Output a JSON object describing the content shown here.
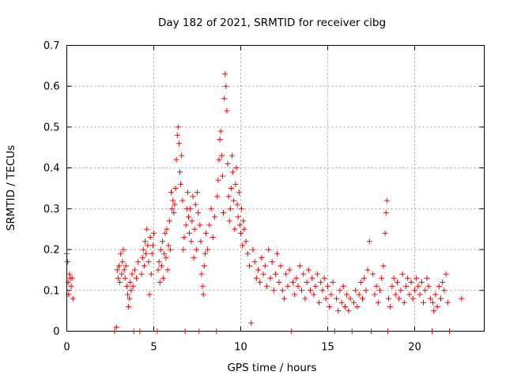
{
  "chart_data": {
    "type": "scatter",
    "title": "Day 182 of 2021, SRMTID for receiver cibg",
    "xlabel": "GPS time / hours",
    "ylabel": "SRMTID / TECUs",
    "xlim": [
      0,
      24
    ],
    "ylim": [
      0,
      0.7
    ],
    "x_ticks": [
      0,
      5,
      10,
      15,
      20
    ],
    "y_ticks": [
      0,
      0.1,
      0.2,
      0.3,
      0.4,
      0.5,
      0.6,
      0.7
    ],
    "x_tick_labels": [
      "0",
      "5",
      "10",
      "15",
      "20"
    ],
    "y_tick_labels": [
      "0",
      "0.1",
      "0.2",
      "0.3",
      "0.4",
      "0.5",
      "0.6",
      "0.7"
    ],
    "grid": true,
    "marker": "+",
    "series": [
      {
        "name": "SRMTID",
        "color": "#ff0000",
        "points": [
          [
            0.0,
            0.19
          ],
          [
            0.05,
            0.17
          ],
          [
            0.08,
            0.12
          ],
          [
            0.1,
            0.09
          ],
          [
            0.15,
            0.14
          ],
          [
            0.2,
            0.13
          ],
          [
            0.25,
            0.11
          ],
          [
            0.3,
            0.13
          ],
          [
            0.35,
            0.08
          ],
          [
            2.75,
            0.0
          ],
          [
            2.85,
            0.01
          ],
          [
            2.9,
            0.15
          ],
          [
            2.95,
            0.13
          ],
          [
            3.0,
            0.16
          ],
          [
            3.05,
            0.12
          ],
          [
            3.1,
            0.19
          ],
          [
            3.15,
            0.14
          ],
          [
            3.2,
            0.17
          ],
          [
            3.25,
            0.2
          ],
          [
            3.3,
            0.15
          ],
          [
            3.35,
            0.13
          ],
          [
            3.4,
            0.16
          ],
          [
            3.45,
            0.11
          ],
          [
            3.5,
            0.09
          ],
          [
            3.55,
            0.06
          ],
          [
            3.6,
            0.08
          ],
          [
            3.65,
            0.12
          ],
          [
            3.7,
            0.1
          ],
          [
            3.75,
            0.14
          ],
          [
            3.8,
            0.11
          ],
          [
            3.85,
            0.0
          ],
          [
            3.9,
            0.15
          ],
          [
            4.0,
            0.13
          ],
          [
            4.1,
            0.17
          ],
          [
            4.2,
            0.0
          ],
          [
            4.3,
            0.14
          ],
          [
            4.35,
            0.18
          ],
          [
            4.4,
            0.2
          ],
          [
            4.45,
            0.16
          ],
          [
            4.5,
            0.22
          ],
          [
            4.55,
            0.19
          ],
          [
            4.6,
            0.25
          ],
          [
            4.65,
            0.21
          ],
          [
            4.7,
            0.17
          ],
          [
            4.75,
            0.09
          ],
          [
            4.8,
            0.23
          ],
          [
            4.85,
            0.14
          ],
          [
            4.9,
            0.19
          ],
          [
            4.95,
            0.21
          ],
          [
            5.0,
            0.24
          ],
          [
            5.2,
            0.0
          ],
          [
            5.25,
            0.15
          ],
          [
            5.3,
            0.17
          ],
          [
            5.35,
            0.12
          ],
          [
            5.4,
            0.2
          ],
          [
            5.45,
            0.16
          ],
          [
            5.5,
            0.22
          ],
          [
            5.55,
            0.13
          ],
          [
            5.6,
            0.19
          ],
          [
            5.65,
            0.24
          ],
          [
            5.7,
            0.18
          ],
          [
            5.75,
            0.25
          ],
          [
            5.8,
            0.15
          ],
          [
            5.85,
            0.21
          ],
          [
            5.9,
            0.27
          ],
          [
            5.95,
            0.2
          ],
          [
            6.0,
            0.34
          ],
          [
            6.05,
            0.3
          ],
          [
            6.1,
            0.32
          ],
          [
            6.15,
            0.29
          ],
          [
            6.2,
            0.31
          ],
          [
            6.25,
            0.35
          ],
          [
            6.3,
            0.42
          ],
          [
            6.35,
            0.48
          ],
          [
            6.4,
            0.5
          ],
          [
            6.45,
            0.46
          ],
          [
            6.5,
            0.39
          ],
          [
            6.55,
            0.36
          ],
          [
            6.6,
            0.43
          ],
          [
            6.65,
            0.32
          ],
          [
            6.7,
            0.2
          ],
          [
            6.75,
            0.23
          ],
          [
            6.8,
            0.0
          ],
          [
            6.85,
            0.26
          ],
          [
            6.9,
            0.3
          ],
          [
            6.95,
            0.34
          ],
          [
            7.0,
            0.28
          ],
          [
            7.05,
            0.24
          ],
          [
            7.1,
            0.3
          ],
          [
            7.15,
            0.22
          ],
          [
            7.2,
            0.27
          ],
          [
            7.25,
            0.33
          ],
          [
            7.3,
            0.18
          ],
          [
            7.35,
            0.25
          ],
          [
            7.4,
            0.31
          ],
          [
            7.45,
            0.2
          ],
          [
            7.5,
            0.34
          ],
          [
            7.55,
            0.29
          ],
          [
            7.6,
            0.0
          ],
          [
            7.65,
            0.26
          ],
          [
            7.7,
            0.22
          ],
          [
            7.75,
            0.14
          ],
          [
            7.8,
            0.11
          ],
          [
            7.85,
            0.09
          ],
          [
            7.9,
            0.16
          ],
          [
            7.95,
            0.19
          ],
          [
            8.0,
            0.24
          ],
          [
            8.1,
            0.2
          ],
          [
            8.2,
            0.26
          ],
          [
            8.3,
            0.3
          ],
          [
            8.4,
            0.23
          ],
          [
            8.5,
            0.28
          ],
          [
            8.6,
            0.0
          ],
          [
            8.65,
            0.33
          ],
          [
            8.7,
            0.37
          ],
          [
            8.75,
            0.42
          ],
          [
            8.8,
            0.47
          ],
          [
            8.85,
            0.49
          ],
          [
            8.9,
            0.43
          ],
          [
            8.95,
            0.38
          ],
          [
            9.0,
            0.29
          ],
          [
            9.05,
            0.57
          ],
          [
            9.1,
            0.63
          ],
          [
            9.15,
            0.6
          ],
          [
            9.2,
            0.54
          ],
          [
            9.25,
            0.41
          ],
          [
            9.3,
            0.33
          ],
          [
            9.35,
            0.27
          ],
          [
            9.4,
            0.3
          ],
          [
            9.45,
            0.35
          ],
          [
            9.5,
            0.43
          ],
          [
            9.55,
            0.39
          ],
          [
            9.6,
            0.32
          ],
          [
            9.65,
            0.25
          ],
          [
            9.7,
            0.36
          ],
          [
            9.75,
            0.4
          ],
          [
            9.8,
            0.31
          ],
          [
            9.85,
            0.28
          ],
          [
            9.9,
            0.34
          ],
          [
            9.95,
            0.26
          ],
          [
            10.0,
            0.24
          ],
          [
            10.05,
            0.3
          ],
          [
            10.1,
            0.21
          ],
          [
            10.15,
            0.27
          ],
          [
            10.2,
            0.25
          ],
          [
            10.3,
            0.22
          ],
          [
            10.4,
            0.19
          ],
          [
            10.5,
            0.16
          ],
          [
            10.6,
            0.02
          ],
          [
            10.7,
            0.2
          ],
          [
            10.8,
            0.17
          ],
          [
            10.9,
            0.13
          ],
          [
            11.0,
            0.15
          ],
          [
            11.1,
            0.12
          ],
          [
            11.2,
            0.18
          ],
          [
            11.3,
            0.14
          ],
          [
            11.4,
            0.16
          ],
          [
            11.5,
            0.11
          ],
          [
            11.6,
            0.2
          ],
          [
            11.7,
            0.13
          ],
          [
            11.8,
            0.17
          ],
          [
            11.9,
            0.1
          ],
          [
            12.0,
            0.14
          ],
          [
            12.1,
            0.19
          ],
          [
            12.2,
            0.12
          ],
          [
            12.3,
            0.16
          ],
          [
            12.4,
            0.1
          ],
          [
            12.5,
            0.08
          ],
          [
            12.6,
            0.14
          ],
          [
            12.7,
            0.11
          ],
          [
            12.8,
            0.15
          ],
          [
            12.9,
            0.0
          ],
          [
            13.0,
            0.12
          ],
          [
            13.1,
            0.09
          ],
          [
            13.2,
            0.13
          ],
          [
            13.3,
            0.11
          ],
          [
            13.4,
            0.16
          ],
          [
            13.5,
            0.1
          ],
          [
            13.6,
            0.14
          ],
          [
            13.7,
            0.08
          ],
          [
            13.8,
            0.12
          ],
          [
            13.9,
            0.15
          ],
          [
            14.0,
            0.1
          ],
          [
            14.1,
            0.13
          ],
          [
            14.2,
            0.09
          ],
          [
            14.3,
            0.11
          ],
          [
            14.4,
            0.14
          ],
          [
            14.5,
            0.07
          ],
          [
            14.6,
            0.12
          ],
          [
            14.7,
            0.1
          ],
          [
            14.8,
            0.13
          ],
          [
            14.9,
            0.08
          ],
          [
            15.0,
            0.11
          ],
          [
            15.1,
            0.06
          ],
          [
            15.2,
            0.09
          ],
          [
            15.3,
            0.12
          ],
          [
            15.4,
            0.0
          ],
          [
            15.5,
            0.08
          ],
          [
            15.6,
            0.05
          ],
          [
            15.7,
            0.1
          ],
          [
            15.8,
            0.07
          ],
          [
            15.9,
            0.11
          ],
          [
            16.0,
            0.06
          ],
          [
            16.1,
            0.09
          ],
          [
            16.2,
            0.05
          ],
          [
            16.3,
            0.08
          ],
          [
            16.4,
            0.0
          ],
          [
            16.5,
            0.07
          ],
          [
            16.6,
            0.1
          ],
          [
            16.7,
            0.06
          ],
          [
            16.8,
            0.09
          ],
          [
            16.9,
            0.12
          ],
          [
            17.0,
            0.08
          ],
          [
            17.1,
            0.13
          ],
          [
            17.2,
            0.1
          ],
          [
            17.3,
            0.15
          ],
          [
            17.4,
            0.22
          ],
          [
            17.5,
            0.0
          ],
          [
            17.6,
            0.14
          ],
          [
            17.7,
            0.09
          ],
          [
            17.8,
            0.11
          ],
          [
            17.9,
            0.07
          ],
          [
            18.0,
            0.1
          ],
          [
            18.1,
            0.13
          ],
          [
            18.2,
            0.16
          ],
          [
            18.3,
            0.24
          ],
          [
            18.35,
            0.29
          ],
          [
            18.4,
            0.32
          ],
          [
            18.45,
            0.0
          ],
          [
            18.5,
            0.08
          ],
          [
            18.6,
            0.06
          ],
          [
            18.7,
            0.11
          ],
          [
            18.8,
            0.13
          ],
          [
            18.9,
            0.09
          ],
          [
            19.0,
            0.12
          ],
          [
            19.1,
            0.08
          ],
          [
            19.2,
            0.1
          ],
          [
            19.3,
            0.14
          ],
          [
            19.4,
            0.07
          ],
          [
            19.5,
            0.11
          ],
          [
            19.6,
            0.13
          ],
          [
            19.7,
            0.09
          ],
          [
            19.8,
            0.12
          ],
          [
            19.9,
            0.08
          ],
          [
            20.0,
            0.1
          ],
          [
            20.1,
            0.13
          ],
          [
            20.2,
            0.11
          ],
          [
            20.3,
            0.09
          ],
          [
            20.4,
            0.12
          ],
          [
            20.5,
            0.07
          ],
          [
            20.6,
            0.1
          ],
          [
            20.7,
            0.13
          ],
          [
            20.8,
            0.11
          ],
          [
            20.9,
            0.08
          ],
          [
            21.0,
            0.0
          ],
          [
            21.05,
            0.07
          ],
          [
            21.1,
            0.05
          ],
          [
            21.2,
            0.09
          ],
          [
            21.3,
            0.06
          ],
          [
            21.4,
            0.11
          ],
          [
            21.5,
            0.08
          ],
          [
            21.6,
            0.12
          ],
          [
            21.7,
            0.1
          ],
          [
            21.8,
            0.14
          ],
          [
            21.9,
            0.07
          ],
          [
            22.0,
            0.0
          ],
          [
            22.7,
            0.08
          ]
        ]
      }
    ]
  }
}
